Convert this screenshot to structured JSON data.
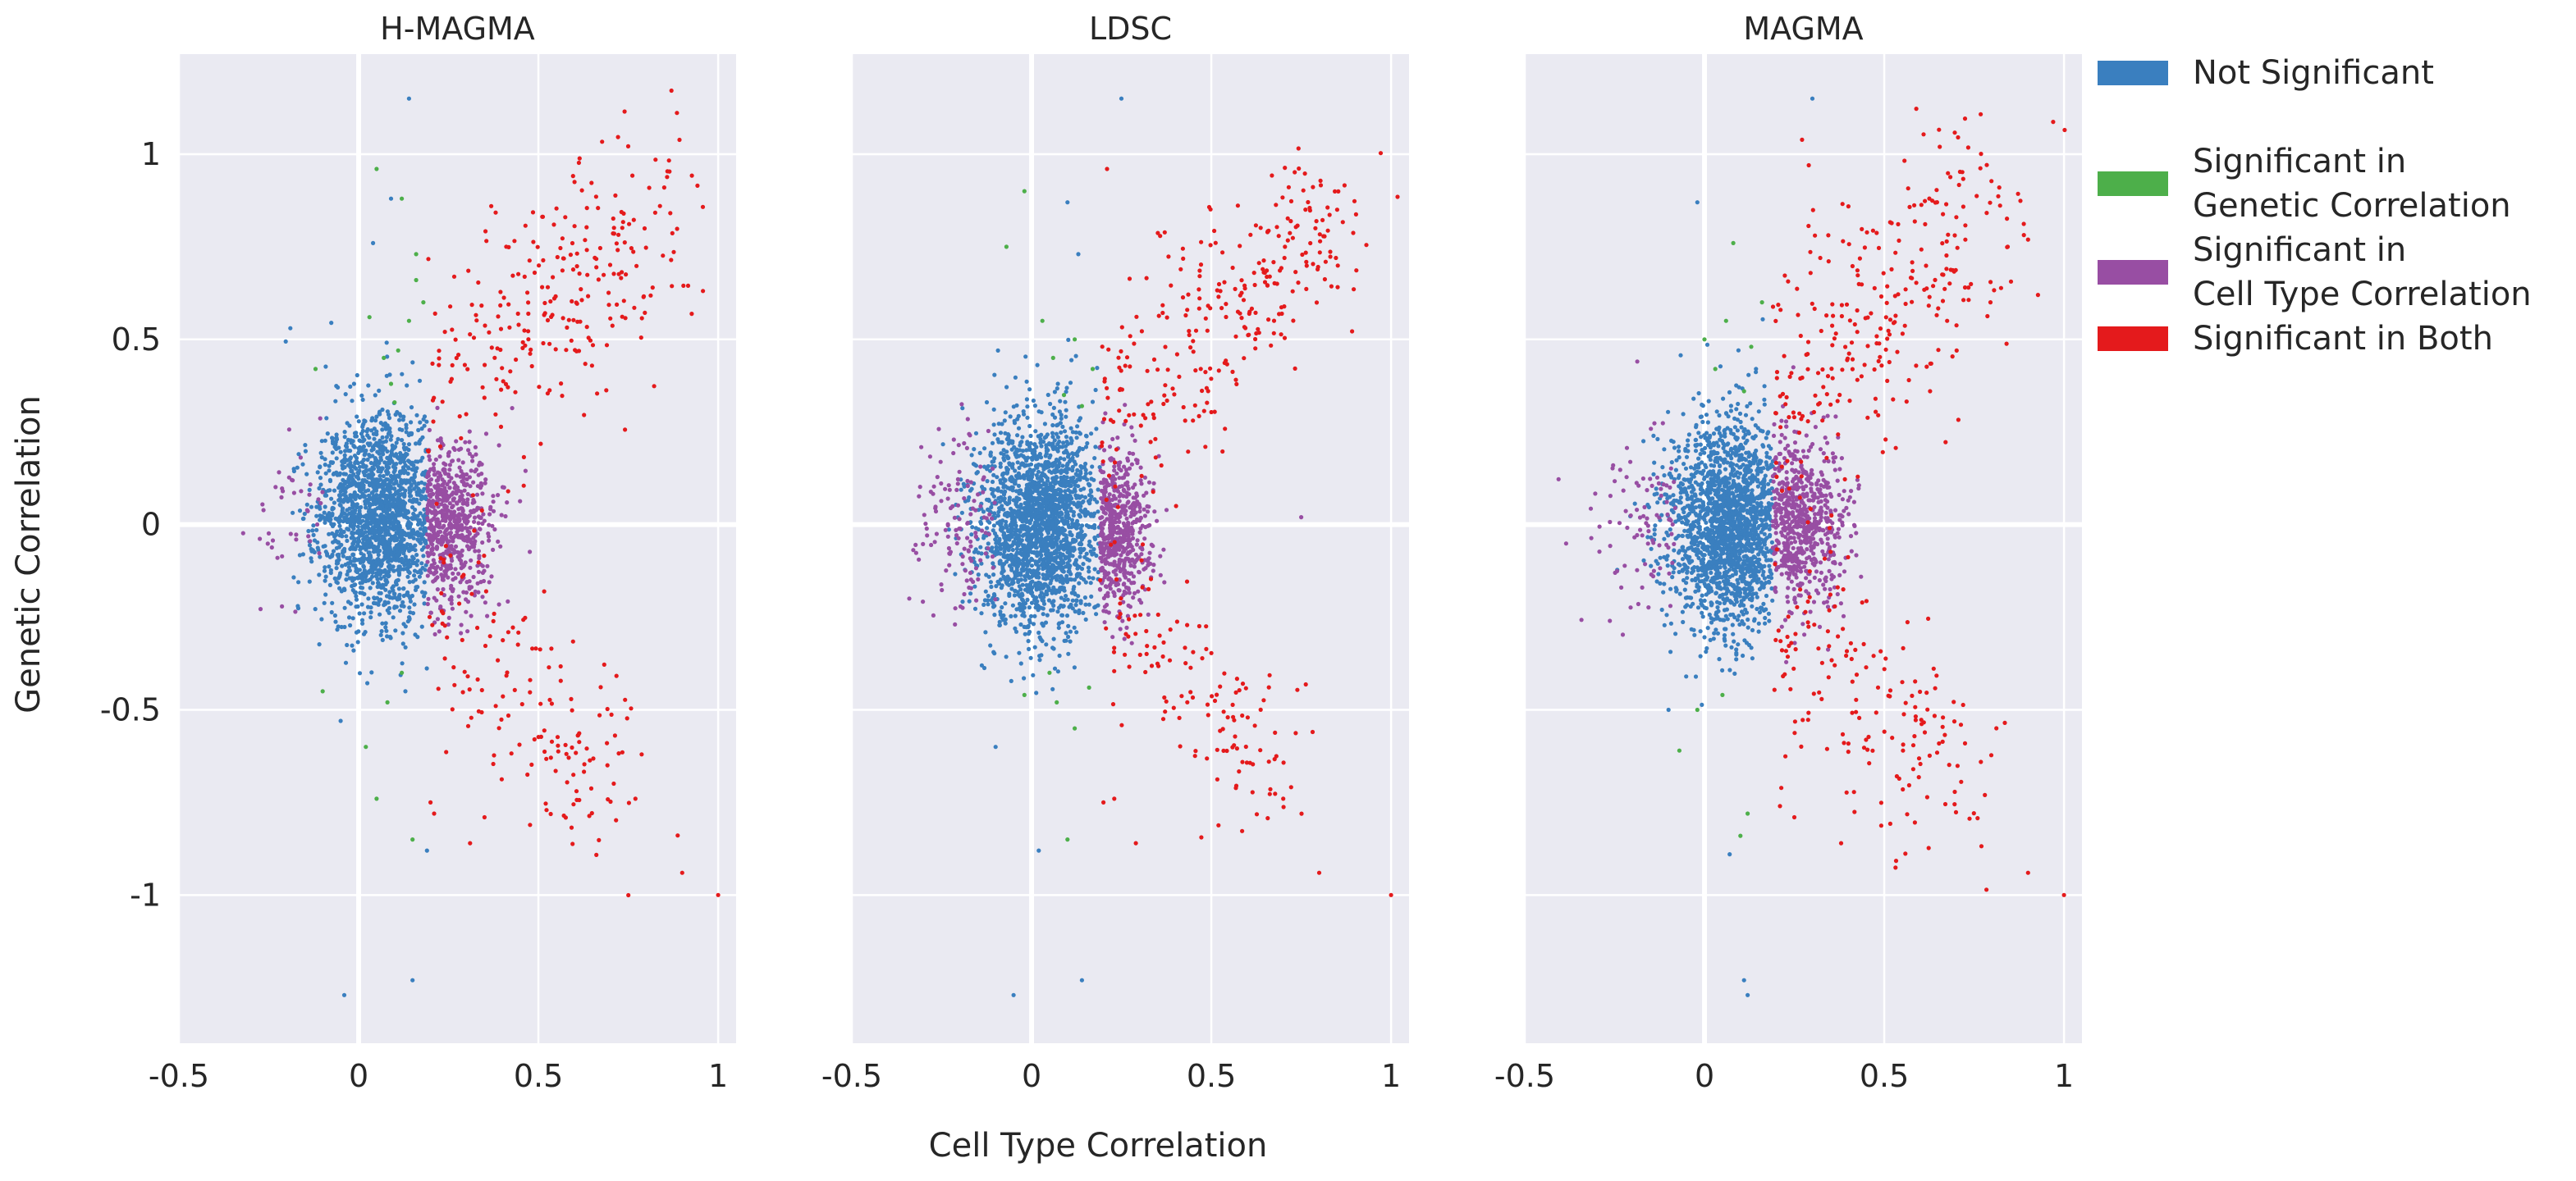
{
  "figure": {
    "xlabel": "Cell Type Correlation",
    "ylabel": "Genetic Correlation"
  },
  "legend": {
    "placement": "right",
    "entries": [
      {
        "key": "ns",
        "lines": [
          "Not Significant"
        ],
        "color": "#3a7fbf"
      },
      {
        "key": "gen",
        "lines": [
          "Significant in",
          "Genetic Correlation"
        ],
        "color": "#4daf4a"
      },
      {
        "key": "ct",
        "lines": [
          "Significant in",
          "Cell Type Correlation"
        ],
        "color": "#984ea3"
      },
      {
        "key": "both",
        "lines": [
          "Significant in Both"
        ],
        "color": "#e41a1c"
      }
    ]
  },
  "chart_data": [
    {
      "type": "scatter",
      "title": "H-MAGMA",
      "xlabel": "Cell Type Correlation",
      "ylabel": "Genetic Correlation",
      "xlim": [
        -0.5,
        1.05
      ],
      "ylim": [
        -1.4,
        1.27
      ],
      "xticks": [
        -0.5,
        0,
        0.5,
        1
      ],
      "xtick_labels": [
        "-0.5",
        "0",
        "0.5",
        "1"
      ],
      "yticks": [
        -1,
        -0.5,
        0,
        0.5,
        1
      ],
      "ytick_labels": [
        "-1",
        "-0.5",
        "0",
        "0.5",
        "1"
      ],
      "grid": true,
      "categories": [
        "Not Significant",
        "Significant in Genetic Correlation",
        "Significant in Cell Type Correlation",
        "Significant in Both"
      ],
      "seed": 11,
      "clouds": [
        {
          "cat": "ns",
          "n": 1800,
          "cx": 0.06,
          "cy": 0.02,
          "sx": 0.085,
          "sy": 0.14,
          "xmax": 0.19,
          "xmin": -0.3
        },
        {
          "cat": "ct",
          "n": 650,
          "cx": 0.24,
          "cy": 0.0,
          "sx": 0.065,
          "sy": 0.11,
          "xmin": 0.19,
          "xmax": 0.48
        },
        {
          "cat": "ct",
          "n": 40,
          "cx": -0.15,
          "cy": 0.0,
          "sx": 0.09,
          "sy": 0.12,
          "xmax": -0.1,
          "xmin": -0.4
        }
      ],
      "points": [
        {
          "x": 0.14,
          "y": 1.15,
          "cat": "ns"
        },
        {
          "x": -0.04,
          "y": -1.27,
          "cat": "ns"
        },
        {
          "x": 0.15,
          "y": -1.23,
          "cat": "ns"
        },
        {
          "x": 0.19,
          "y": -0.88,
          "cat": "ns"
        },
        {
          "x": -0.19,
          "y": 0.53,
          "cat": "ns"
        },
        {
          "x": 0.09,
          "y": 0.88,
          "cat": "ns"
        },
        {
          "x": 0.04,
          "y": 0.76,
          "cat": "ns"
        },
        {
          "x": -0.05,
          "y": -0.53,
          "cat": "ns"
        },
        {
          "x": 0.13,
          "y": -0.45,
          "cat": "ns"
        },
        {
          "x": 0.05,
          "y": 0.96,
          "cat": "gen"
        },
        {
          "x": 0.12,
          "y": 0.88,
          "cat": "gen"
        },
        {
          "x": 0.07,
          "y": 0.45,
          "cat": "gen"
        },
        {
          "x": 0.11,
          "y": 0.47,
          "cat": "gen"
        },
        {
          "x": 0.16,
          "y": 0.66,
          "cat": "gen"
        },
        {
          "x": 0.03,
          "y": 0.56,
          "cat": "gen"
        },
        {
          "x": 0.09,
          "y": 0.38,
          "cat": "gen"
        },
        {
          "x": 0.14,
          "y": 0.55,
          "cat": "gen"
        },
        {
          "x": 0.18,
          "y": 0.6,
          "cat": "gen"
        },
        {
          "x": -0.12,
          "y": 0.42,
          "cat": "gen"
        },
        {
          "x": 0.1,
          "y": 0.33,
          "cat": "gen"
        },
        {
          "x": 0.05,
          "y": -0.74,
          "cat": "gen"
        },
        {
          "x": 0.15,
          "y": -0.85,
          "cat": "gen"
        },
        {
          "x": 0.08,
          "y": -0.48,
          "cat": "gen"
        },
        {
          "x": 0.12,
          "y": -0.4,
          "cat": "gen"
        },
        {
          "x": -0.1,
          "y": -0.45,
          "cat": "gen"
        },
        {
          "x": 0.02,
          "y": -0.6,
          "cat": "gen"
        },
        {
          "x": 0.16,
          "y": 0.73,
          "cat": "gen"
        },
        {
          "x": 1.0,
          "y": -1.0,
          "cat": "both"
        },
        {
          "x": 0.9,
          "y": -0.94,
          "cat": "both"
        },
        {
          "x": 0.85,
          "y": 0.91,
          "cat": "both"
        },
        {
          "x": 0.77,
          "y": -0.74,
          "cat": "both"
        },
        {
          "x": 0.2,
          "y": -0.75,
          "cat": "both"
        },
        {
          "x": 0.31,
          "y": -0.86,
          "cat": "both"
        },
        {
          "x": 0.35,
          "y": -0.79,
          "cat": "both"
        },
        {
          "x": 0.21,
          "y": -0.78,
          "cat": "both"
        }
      ],
      "bands": [
        {
          "cat": "both",
          "n": 260,
          "x0": 0.22,
          "y0": 0.35,
          "x1": 0.85,
          "y1": 0.85,
          "spread": 0.16
        },
        {
          "cat": "both",
          "n": 150,
          "x0": 0.22,
          "y0": -0.25,
          "x1": 0.72,
          "y1": -0.72,
          "spread": 0.13
        }
      ]
    },
    {
      "type": "scatter",
      "title": "LDSC",
      "xlabel": "Cell Type Correlation",
      "ylabel": "Genetic Correlation",
      "xlim": [
        -0.5,
        1.05
      ],
      "ylim": [
        -1.4,
        1.27
      ],
      "xticks": [
        -0.5,
        0,
        0.5,
        1
      ],
      "xtick_labels": [
        "-0.5",
        "0",
        "0.5",
        "1"
      ],
      "yticks": [
        -1,
        -0.5,
        0,
        0.5,
        1
      ],
      "grid": true,
      "categories": [
        "Not Significant",
        "Significant in Genetic Correlation",
        "Significant in Cell Type Correlation",
        "Significant in Both"
      ],
      "seed": 23,
      "clouds": [
        {
          "cat": "ns",
          "n": 2000,
          "cx": 0.02,
          "cy": 0.0,
          "sx": 0.085,
          "sy": 0.14,
          "xmax": 0.19,
          "xmin": -0.3
        },
        {
          "cat": "ct",
          "n": 550,
          "cx": 0.23,
          "cy": -0.02,
          "sx": 0.05,
          "sy": 0.11,
          "xmin": 0.19,
          "xmax": 0.42
        },
        {
          "cat": "ct",
          "n": 130,
          "cx": -0.2,
          "cy": 0.0,
          "sx": 0.08,
          "sy": 0.12,
          "xmax": -0.1,
          "xmin": -0.4
        }
      ],
      "points": [
        {
          "x": 0.25,
          "y": 1.15,
          "cat": "ns"
        },
        {
          "x": -0.05,
          "y": -1.27,
          "cat": "ns"
        },
        {
          "x": 0.14,
          "y": -1.23,
          "cat": "ns"
        },
        {
          "x": 0.02,
          "y": -0.88,
          "cat": "ns"
        },
        {
          "x": -0.1,
          "y": -0.6,
          "cat": "ns"
        },
        {
          "x": 0.1,
          "y": 0.87,
          "cat": "ns"
        },
        {
          "x": 0.13,
          "y": 0.73,
          "cat": "ns"
        },
        {
          "x": 0.75,
          "y": 0.02,
          "cat": "ct"
        },
        {
          "x": -0.02,
          "y": 0.9,
          "cat": "gen"
        },
        {
          "x": -0.07,
          "y": 0.75,
          "cat": "gen"
        },
        {
          "x": 0.06,
          "y": 0.45,
          "cat": "gen"
        },
        {
          "x": 0.12,
          "y": 0.5,
          "cat": "gen"
        },
        {
          "x": 0.17,
          "y": 0.42,
          "cat": "gen"
        },
        {
          "x": 0.09,
          "y": 0.35,
          "cat": "gen"
        },
        {
          "x": 0.03,
          "y": 0.55,
          "cat": "gen"
        },
        {
          "x": 0.14,
          "y": 0.32,
          "cat": "gen"
        },
        {
          "x": 0.07,
          "y": -0.48,
          "cat": "gen"
        },
        {
          "x": 0.12,
          "y": -0.55,
          "cat": "gen"
        },
        {
          "x": -0.02,
          "y": -0.46,
          "cat": "gen"
        },
        {
          "x": 0.1,
          "y": -0.85,
          "cat": "gen"
        },
        {
          "x": 0.16,
          "y": -0.44,
          "cat": "gen"
        },
        {
          "x": 0.05,
          "y": -0.4,
          "cat": "gen"
        },
        {
          "x": 1.0,
          "y": -1.0,
          "cat": "both"
        },
        {
          "x": 0.8,
          "y": -0.94,
          "cat": "both"
        },
        {
          "x": 0.21,
          "y": 0.96,
          "cat": "both"
        },
        {
          "x": 0.2,
          "y": -0.75,
          "cat": "both"
        },
        {
          "x": 0.23,
          "y": -0.74,
          "cat": "both"
        },
        {
          "x": 0.29,
          "y": -0.86,
          "cat": "both"
        },
        {
          "x": 0.7,
          "y": -0.74,
          "cat": "both"
        },
        {
          "x": 0.66,
          "y": -0.64,
          "cat": "both"
        },
        {
          "x": 0.85,
          "y": 0.85,
          "cat": "both"
        }
      ],
      "bands": [
        {
          "cat": "both",
          "n": 280,
          "x0": 0.2,
          "y0": 0.25,
          "x1": 0.85,
          "y1": 0.85,
          "spread": 0.13
        },
        {
          "cat": "both",
          "n": 130,
          "x0": 0.2,
          "y0": -0.22,
          "x1": 0.68,
          "y1": -0.68,
          "spread": 0.13
        }
      ]
    },
    {
      "type": "scatter",
      "title": "MAGMA",
      "xlabel": "Cell Type Correlation",
      "ylabel": "Genetic Correlation",
      "xlim": [
        -0.5,
        1.05
      ],
      "ylim": [
        -1.4,
        1.27
      ],
      "xticks": [
        -0.5,
        0,
        0.5,
        1
      ],
      "xtick_labels": [
        "-0.5",
        "0",
        "0.5",
        "1"
      ],
      "yticks": [
        -1,
        -0.5,
        0,
        0.5,
        1
      ],
      "grid": true,
      "categories": [
        "Not Significant",
        "Significant in Genetic Correlation",
        "Significant in Cell Type Correlation",
        "Significant in Both"
      ],
      "seed": 37,
      "clouds": [
        {
          "cat": "ns",
          "n": 1900,
          "cx": 0.07,
          "cy": 0.0,
          "sx": 0.085,
          "sy": 0.14,
          "xmax": 0.19,
          "xmin": -0.3
        },
        {
          "cat": "ct",
          "n": 650,
          "cx": 0.25,
          "cy": 0.0,
          "sx": 0.07,
          "sy": 0.11,
          "xmin": 0.19,
          "xmax": 0.5
        },
        {
          "cat": "ct",
          "n": 90,
          "cx": -0.15,
          "cy": 0.0,
          "sx": 0.09,
          "sy": 0.12,
          "xmax": -0.08,
          "xmin": -0.45
        }
      ],
      "points": [
        {
          "x": 0.3,
          "y": 1.15,
          "cat": "ns"
        },
        {
          "x": 0.12,
          "y": -1.27,
          "cat": "ns"
        },
        {
          "x": 0.11,
          "y": -1.23,
          "cat": "ns"
        },
        {
          "x": 0.07,
          "y": -0.89,
          "cat": "ns"
        },
        {
          "x": -0.1,
          "y": -0.5,
          "cat": "ns"
        },
        {
          "x": -0.02,
          "y": 0.87,
          "cat": "ns"
        },
        {
          "x": -0.07,
          "y": -0.61,
          "cat": "gen"
        },
        {
          "x": 0.05,
          "y": -0.46,
          "cat": "gen"
        },
        {
          "x": 0.12,
          "y": -0.78,
          "cat": "gen"
        },
        {
          "x": 0.1,
          "y": -0.84,
          "cat": "gen"
        },
        {
          "x": 0.08,
          "y": 0.76,
          "cat": "gen"
        },
        {
          "x": 0.06,
          "y": 0.55,
          "cat": "gen"
        },
        {
          "x": 0.13,
          "y": 0.48,
          "cat": "gen"
        },
        {
          "x": 0.03,
          "y": 0.42,
          "cat": "gen"
        },
        {
          "x": 0.11,
          "y": 0.36,
          "cat": "gen"
        },
        {
          "x": 0.16,
          "y": 0.6,
          "cat": "gen"
        },
        {
          "x": 0.0,
          "y": 0.5,
          "cat": "gen"
        },
        {
          "x": -0.02,
          "y": -0.5,
          "cat": "gen"
        },
        {
          "x": 1.0,
          "y": -1.0,
          "cat": "both"
        },
        {
          "x": 0.9,
          "y": -0.94,
          "cat": "both"
        },
        {
          "x": 0.82,
          "y": 0.91,
          "cat": "both"
        },
        {
          "x": 0.29,
          "y": 0.97,
          "cat": "both"
        },
        {
          "x": 0.38,
          "y": -0.86,
          "cat": "both"
        },
        {
          "x": 0.78,
          "y": -0.73,
          "cat": "both"
        },
        {
          "x": 0.21,
          "y": -0.76,
          "cat": "both"
        },
        {
          "x": 0.25,
          "y": -0.79,
          "cat": "both"
        }
      ],
      "bands": [
        {
          "cat": "both",
          "n": 280,
          "x0": 0.2,
          "y0": 0.3,
          "x1": 0.8,
          "y1": 0.85,
          "spread": 0.17
        },
        {
          "cat": "both",
          "n": 170,
          "x0": 0.2,
          "y0": -0.22,
          "x1": 0.75,
          "y1": -0.72,
          "spread": 0.14
        }
      ]
    }
  ]
}
